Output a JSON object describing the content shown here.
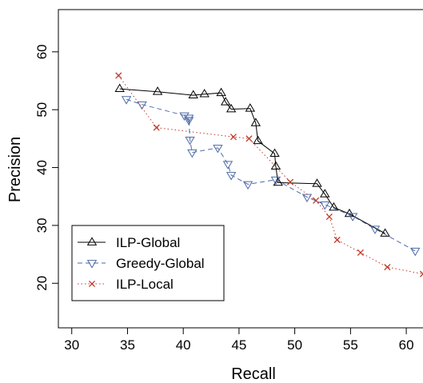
{
  "chart_data": {
    "type": "line",
    "xlabel": "Recall",
    "ylabel": "Precision",
    "xlim": [
      28.8,
      61.5
    ],
    "ylim": [
      12.3,
      67.3
    ],
    "x_ticks": [
      30,
      35,
      40,
      45,
      50,
      55,
      60
    ],
    "y_ticks": [
      20,
      30,
      40,
      50,
      60
    ],
    "x_tick_labels": [
      "30",
      "35",
      "40",
      "45",
      "50",
      "55",
      "60"
    ],
    "y_tick_labels": [
      "20",
      "30",
      "40",
      "50",
      "60"
    ],
    "grid": false,
    "legend_position": "bottom-left",
    "series": [
      {
        "name": "ILP-Global",
        "color": "#000000",
        "marker": "triangle-up",
        "line_style": "solid",
        "points": [
          [
            34.3,
            53.6
          ],
          [
            37.7,
            53.1
          ],
          [
            40.9,
            52.5
          ],
          [
            41.9,
            52.7
          ],
          [
            43.4,
            52.9
          ],
          [
            43.8,
            51.3
          ],
          [
            44.3,
            50.1
          ],
          [
            46.0,
            50.2
          ],
          [
            46.5,
            47.7
          ],
          [
            46.7,
            44.6
          ],
          [
            48.2,
            42.4
          ],
          [
            48.3,
            40.2
          ],
          [
            48.5,
            37.4
          ],
          [
            52.0,
            37.2
          ],
          [
            52.7,
            35.4
          ],
          [
            53.5,
            33.1
          ],
          [
            54.9,
            32.0
          ],
          [
            58.1,
            28.6
          ]
        ]
      },
      {
        "name": "Greedy-Global",
        "color": "#4b6aa6",
        "marker": "triangle-down",
        "line_style": "dashed",
        "points": [
          [
            34.9,
            51.8
          ],
          [
            36.3,
            50.9
          ],
          [
            40.1,
            49.0
          ],
          [
            40.5,
            48.2
          ],
          [
            40.5,
            48.6
          ],
          [
            40.6,
            44.8
          ],
          [
            40.8,
            42.6
          ],
          [
            43.1,
            43.4
          ],
          [
            44.0,
            40.6
          ],
          [
            44.3,
            38.7
          ],
          [
            45.8,
            37.1
          ],
          [
            48.3,
            37.9
          ],
          [
            51.1,
            34.9
          ],
          [
            52.7,
            33.6
          ],
          [
            55.2,
            31.6
          ],
          [
            57.2,
            29.4
          ],
          [
            60.8,
            25.6
          ]
        ]
      },
      {
        "name": "ILP-Local",
        "color": "#c0392b",
        "marker": "x",
        "line_style": "dotted",
        "points": [
          [
            34.2,
            55.9
          ],
          [
            37.6,
            46.9
          ],
          [
            44.5,
            45.3
          ],
          [
            45.9,
            45.0
          ],
          [
            49.6,
            37.5
          ],
          [
            51.9,
            34.3
          ],
          [
            53.1,
            31.5
          ],
          [
            53.8,
            27.5
          ],
          [
            55.9,
            25.3
          ],
          [
            58.3,
            22.8
          ],
          [
            61.5,
            21.6
          ]
        ]
      }
    ]
  }
}
